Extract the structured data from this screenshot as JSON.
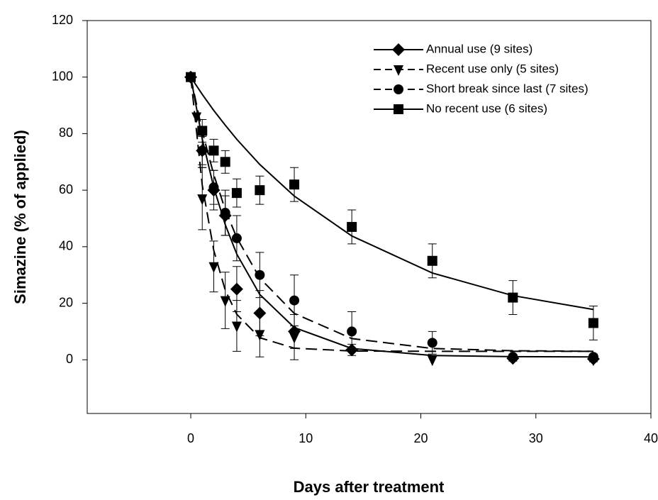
{
  "chart_data": {
    "type": "scatter",
    "x_label": "Days after treatment",
    "y_label": "Simazine (% of applied)",
    "xlim": [
      -9,
      40
    ],
    "xticks": [
      0,
      10,
      20,
      30,
      40
    ],
    "ylim": [
      -19,
      120
    ],
    "yticks": [
      0,
      20,
      40,
      60,
      80,
      100,
      120
    ],
    "legend": "upper right",
    "fit_x": [
      0,
      1,
      2,
      3,
      4,
      6,
      9,
      14,
      21,
      28,
      35
    ],
    "series": [
      {
        "name": "Annual use (9 sites)",
        "color": "#000000",
        "marker": "diamond",
        "dashed": false,
        "x": [
          0,
          1,
          2,
          3,
          4,
          6,
          9,
          14,
          28,
          35
        ],
        "values": [
          100,
          74,
          60,
          51,
          25,
          16.5,
          10,
          3.5,
          0.5,
          0.3
        ],
        "errors": [
          0,
          6,
          7,
          7,
          8,
          8,
          6,
          2,
          1,
          1
        ],
        "fit": [
          100,
          78.1,
          61.0,
          47.8,
          37.4,
          23.1,
          11.4,
          4.0,
          1.5,
          1.1,
          1.0
        ]
      },
      {
        "name": "Recent use only (5 sites)",
        "color": "#000000",
        "marker": "triangle",
        "dashed": true,
        "x": [
          0,
          0.5,
          1,
          2,
          3,
          4,
          6,
          9,
          21,
          35
        ],
        "values": [
          100,
          86,
          57,
          33,
          21,
          12,
          9,
          8,
          0,
          0
        ],
        "errors": [
          0,
          0,
          11,
          9,
          10,
          9,
          8,
          8,
          0,
          0
        ],
        "fit": [
          100,
          61.8,
          38.7,
          24.6,
          16.1,
          7.8,
          4.1,
          3.1,
          3.0,
          3.0,
          3.0
        ]
      },
      {
        "name": "Short break since last (7 sites)",
        "color": "#000000",
        "marker": "circle",
        "dashed": true,
        "x": [
          0,
          1,
          2,
          3,
          4,
          6,
          9,
          14,
          21,
          28,
          35
        ],
        "values": [
          100,
          74,
          61,
          52,
          43,
          30,
          21,
          10,
          6,
          1,
          1
        ],
        "errors": [
          0,
          5,
          6,
          8,
          8,
          8,
          9,
          7,
          4,
          1,
          1
        ],
        "fit": [
          100,
          80.8,
          65.5,
          53.1,
          43.2,
          28.9,
          16.4,
          7.5,
          4.0,
          3.2,
          3.0
        ]
      },
      {
        "name": "No recent use (6 sites)",
        "color": "#000000",
        "marker": "square",
        "dashed": false,
        "x": [
          0,
          1,
          2,
          3,
          4,
          6,
          9,
          14,
          21,
          28,
          35
        ],
        "values": [
          100,
          81,
          74,
          70,
          59,
          60,
          62,
          47,
          35,
          22,
          13
        ],
        "errors": [
          0,
          4,
          4,
          4,
          5,
          5,
          6,
          6,
          6,
          6,
          6
        ],
        "fit": [
          100,
          93.9,
          88.2,
          83.0,
          78.0,
          69.1,
          57.9,
          43.8,
          30.7,
          22.7,
          17.8
        ]
      }
    ]
  }
}
